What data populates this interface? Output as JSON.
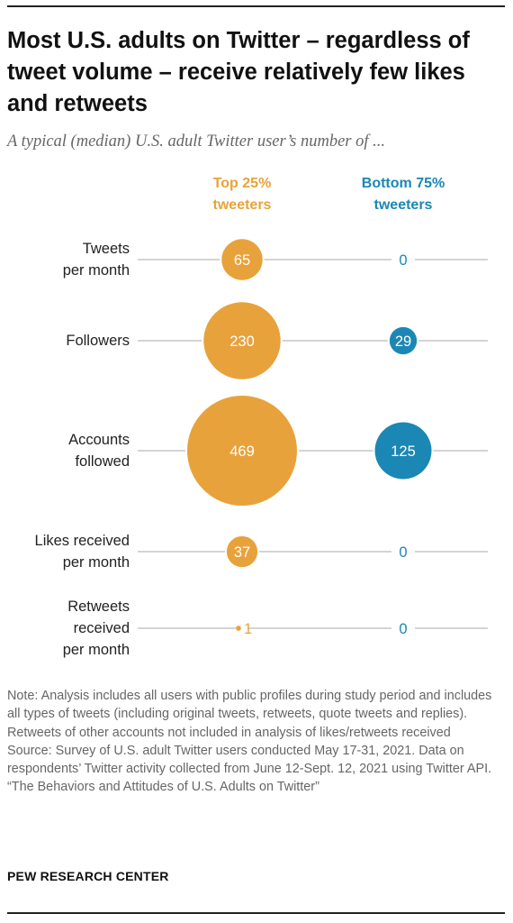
{
  "title": "Most U.S. adults on Twitter – regardless of tweet volume – receive relatively few likes and retweets",
  "subtitle": "A typical (median) U.S. adult Twitter user’s number of ...",
  "colors": {
    "top": "#E8A23B",
    "bottom": "#1B87B5",
    "line": "#aaaaaa"
  },
  "chart_data": {
    "type": "bubble",
    "categories": [
      "Tweets per month",
      "Followers",
      "Accounts followed",
      "Likes received per month",
      "Retweets received per month"
    ],
    "category_lines": [
      [
        "Tweets",
        "per month"
      ],
      [
        "Followers"
      ],
      [
        "Accounts",
        "followed"
      ],
      [
        "Likes received",
        "per month"
      ],
      [
        "Retweets",
        "received",
        "per month"
      ]
    ],
    "series": [
      {
        "name": "Top 25% tweeters",
        "header_lines": [
          "Top 25%",
          "tweeters"
        ],
        "color": "#E8A23B",
        "values": [
          65,
          230,
          469,
          37,
          1
        ]
      },
      {
        "name": "Bottom 75% tweeters",
        "header_lines": [
          "Bottom 75%",
          "tweeters"
        ],
        "color": "#1B87B5",
        "values": [
          0,
          29,
          125,
          0,
          0
        ]
      }
    ]
  },
  "notes": [
    "Note: Analysis includes all users with public profiles during study period and includes all types of tweets (including original tweets, retweets, quote tweets and replies). Retweets of other accounts not included in analysis of likes/retweets received",
    "Source: Survey of U.S. adult Twitter users conducted May 17-31, 2021. Data on respondents’ Twitter activity collected from June 12-Sept. 12, 2021 using Twitter API.",
    "“The Behaviors and Attitudes of U.S. Adults on Twitter”"
  ],
  "org": "PEW RESEARCH CENTER"
}
